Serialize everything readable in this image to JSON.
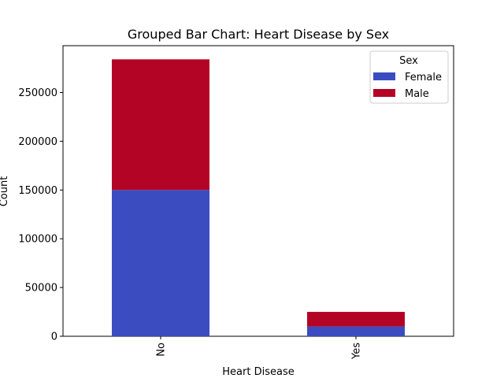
{
  "chart_data": {
    "type": "bar",
    "stacked": true,
    "title": "Grouped Bar Chart: Heart Disease by Sex",
    "xlabel": "Heart Disease",
    "ylabel": "Count",
    "categories": [
      "No",
      "Yes"
    ],
    "series": [
      {
        "name": "Female",
        "values": [
          150000,
          10000
        ],
        "color": "#3b4cc0"
      },
      {
        "name": "Male",
        "values": [
          134000,
          15000
        ],
        "color": "#b40426"
      }
    ],
    "ylim": [
      0,
      298000
    ],
    "yticks": [
      0,
      50000,
      100000,
      150000,
      200000,
      250000
    ],
    "legend": {
      "title": "Sex",
      "position": "top-right"
    },
    "grid": false
  }
}
